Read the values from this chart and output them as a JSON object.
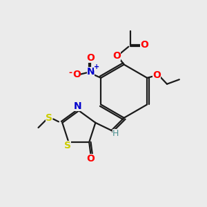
{
  "bg_color": "#ebebeb",
  "bond_color": "#1a1a1a",
  "bond_width": 1.6,
  "atom_colors": {
    "O": "#ff0000",
    "N": "#0000cc",
    "S": "#cccc00",
    "H": "#4a9090",
    "C": "#1a1a1a"
  },
  "font_size": 9,
  "fig_size": [
    3.0,
    3.0
  ],
  "dpi": 100
}
